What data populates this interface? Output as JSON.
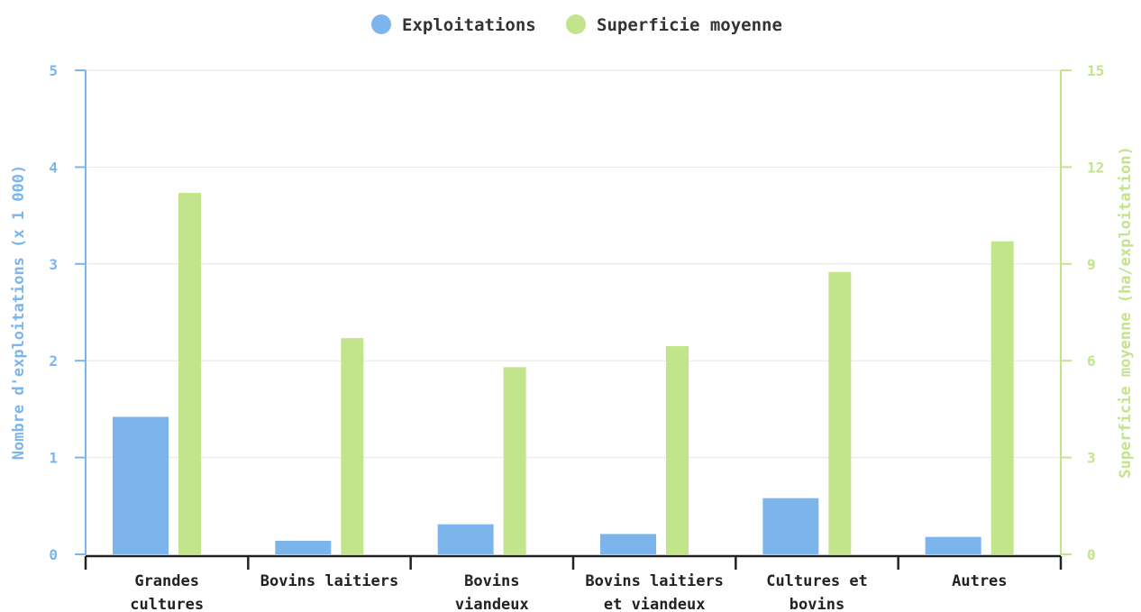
{
  "chart_data": {
    "type": "bar",
    "categories": [
      [
        "Grandes",
        "cultures"
      ],
      [
        "Bovins laitiers"
      ],
      [
        "Bovins",
        "viandeux"
      ],
      [
        "Bovins laitiers",
        "et viandeux"
      ],
      [
        "Cultures et",
        "bovins"
      ],
      [
        "Autres"
      ]
    ],
    "series": [
      {
        "name": "Exploitations",
        "axis": "left",
        "color": "#7cb5ec",
        "values": [
          1.42,
          0.14,
          0.31,
          0.21,
          0.58,
          0.18
        ]
      },
      {
        "name": "Superficie moyenne",
        "axis": "right",
        "color": "#c2e58b",
        "values": [
          11.2,
          6.7,
          5.8,
          6.45,
          8.75,
          9.7
        ]
      }
    ],
    "ylabel_left": "Nombre d'exploitations (x 1 000)",
    "ylabel_right": "Superficie moyenne (ha/exploitation)",
    "ylim_left": [
      0,
      5
    ],
    "ylim_right": [
      0,
      15
    ],
    "yticks_left": [
      "0",
      "1",
      "2",
      "3",
      "4",
      "5"
    ],
    "yticks_right": [
      "0",
      "3",
      "6",
      "9",
      "12",
      "15"
    ],
    "legend_position": "top-center",
    "grid": true
  }
}
